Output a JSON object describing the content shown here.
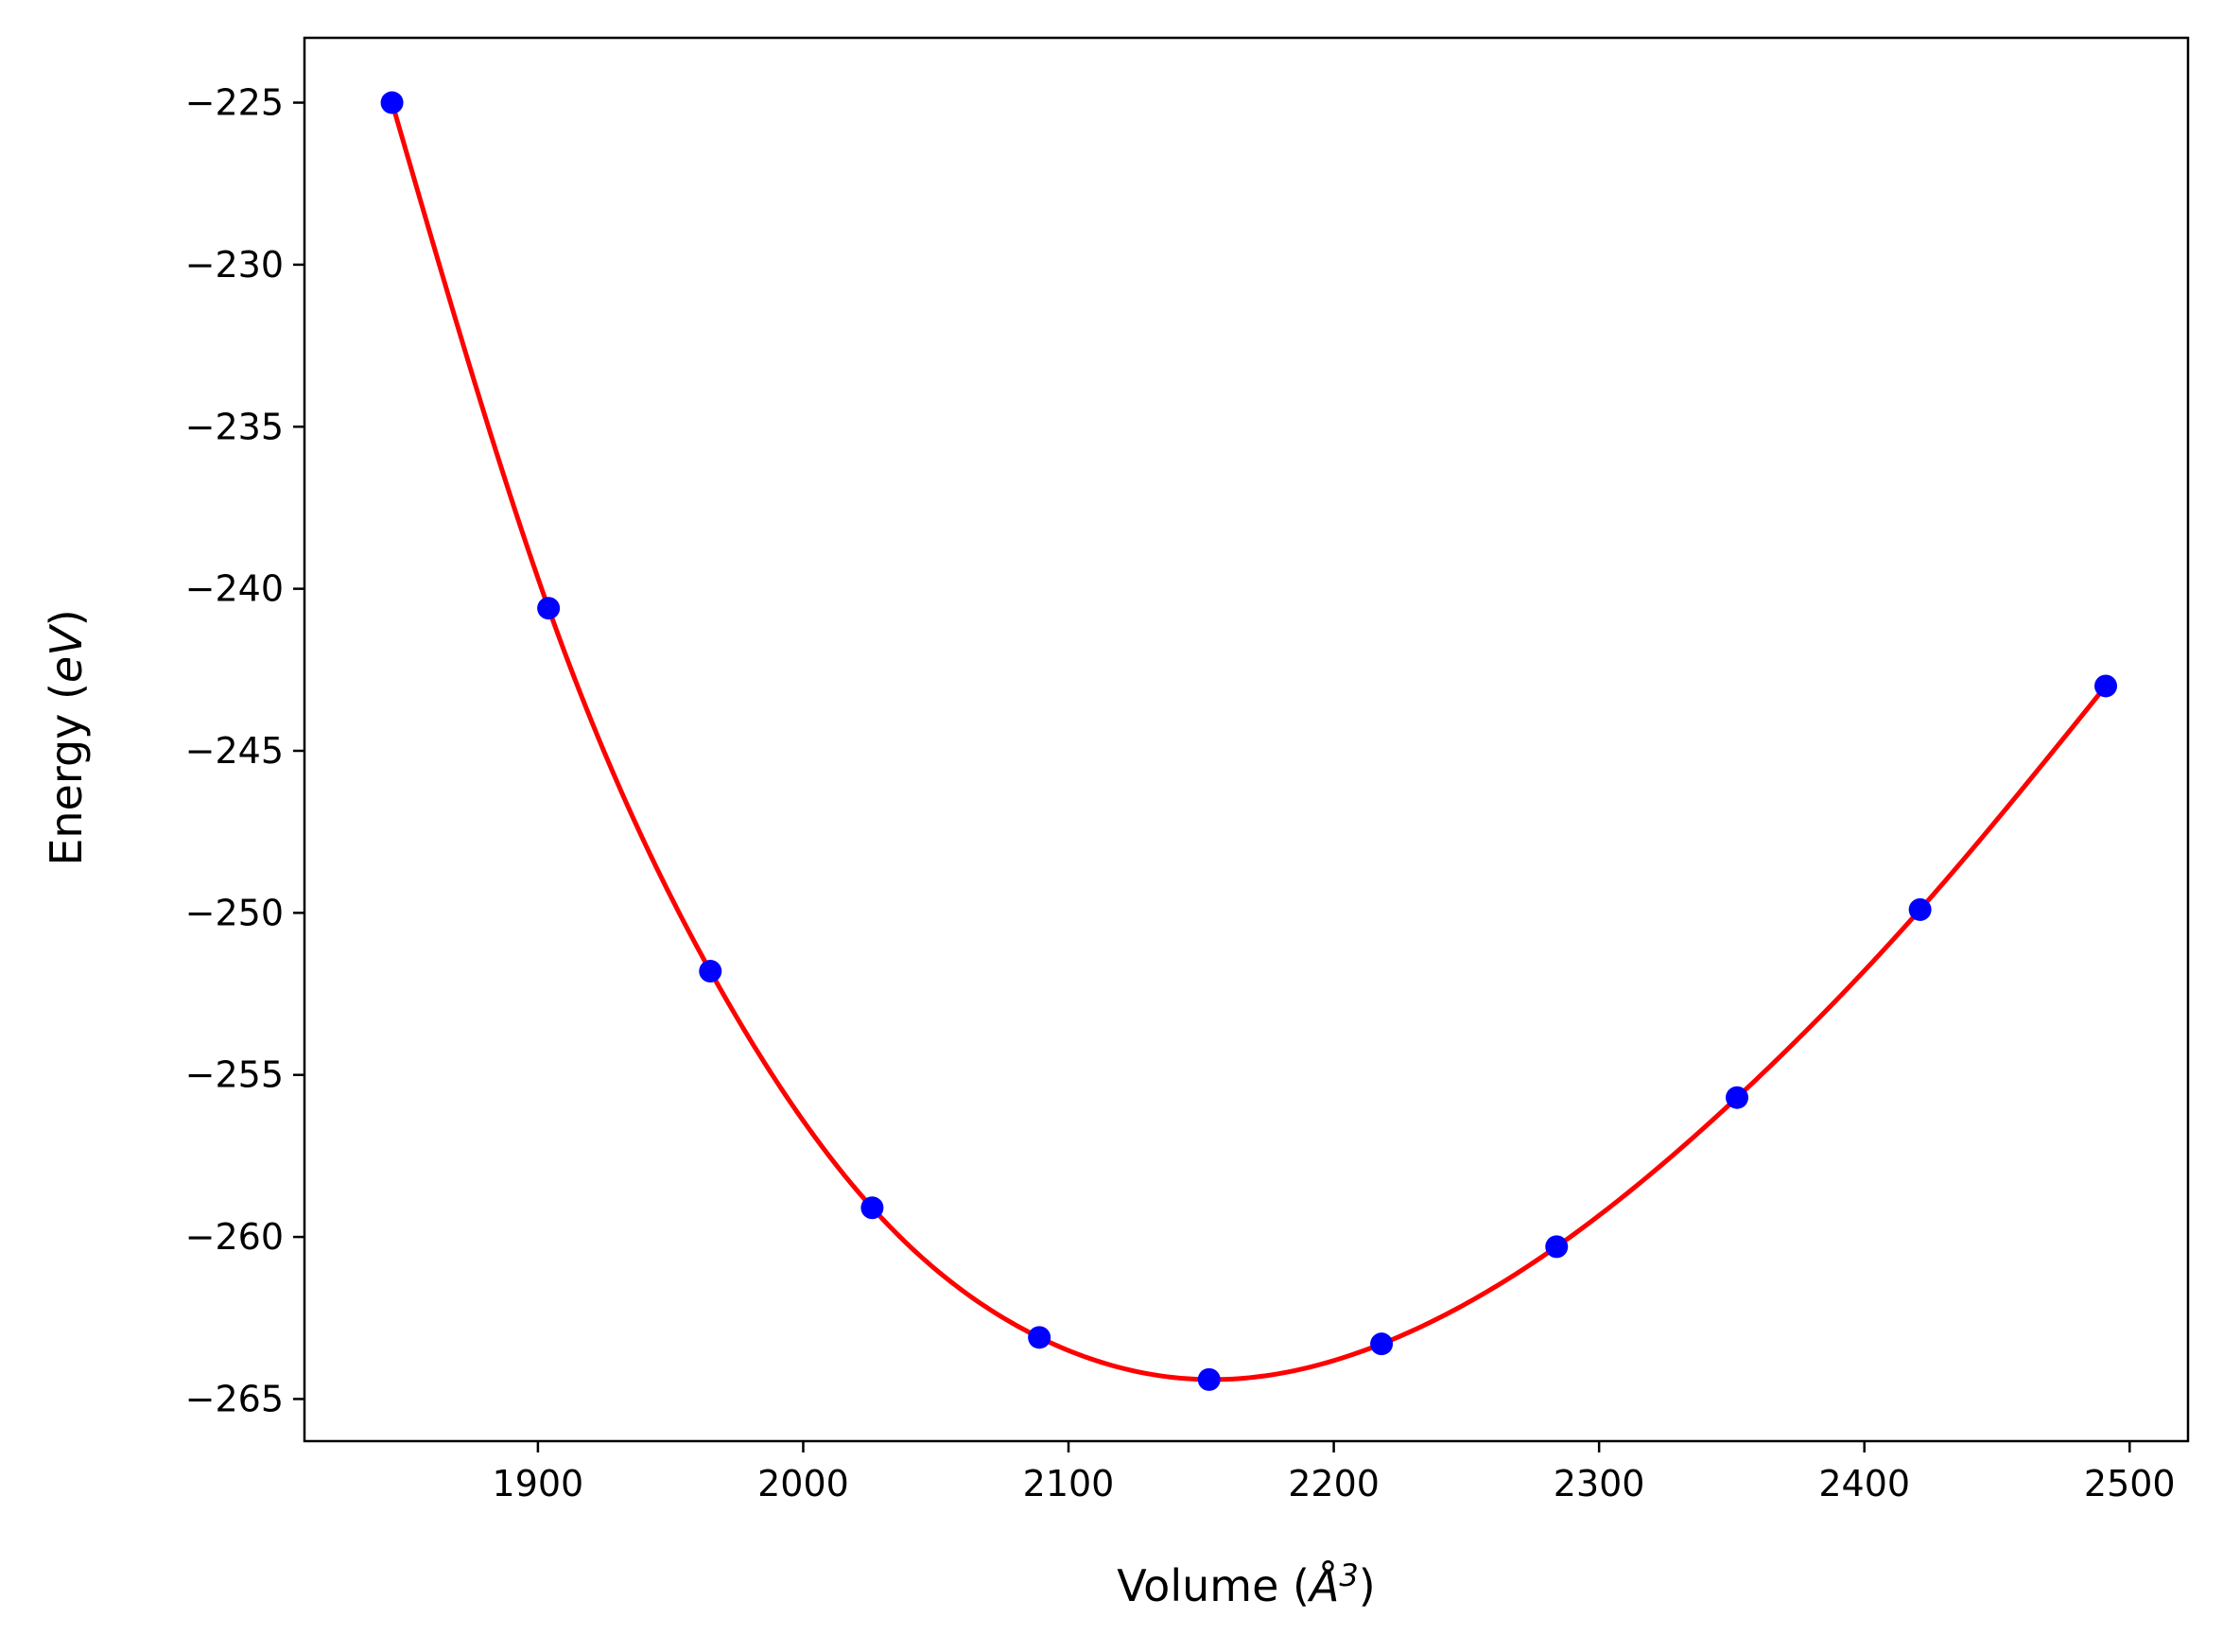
{
  "chart_data": {
    "type": "scatter",
    "xlabel": {
      "prefix": "Volume (",
      "symbol": "Å",
      "sup": "3",
      "suffix": ")"
    },
    "ylabel": {
      "prefix": "Energy (",
      "symbol": "eV",
      "suffix": ")"
    },
    "xlim": [
      1812,
      2522
    ],
    "ylim": [
      -266.3,
      -223.0
    ],
    "xticks": [
      1900,
      2000,
      2100,
      2200,
      2300,
      2400,
      2500
    ],
    "xtick_labels": [
      "1900",
      "2000",
      "2100",
      "2200",
      "2300",
      "2400",
      "2500"
    ],
    "yticks": [
      -225,
      -230,
      -235,
      -240,
      -245,
      -250,
      -255,
      -260,
      -265
    ],
    "ytick_labels": [
      "−225",
      "−230",
      "−235",
      "−240",
      "−245",
      "−250",
      "−255",
      "−260",
      "−265"
    ],
    "grid": false,
    "points": {
      "color": "#0000ff",
      "x": [
        1845,
        1904,
        1965,
        2026,
        2089,
        2153,
        2218,
        2284,
        2352,
        2421,
        2491
      ],
      "y": [
        -225.0,
        -240.6,
        -251.8,
        -259.1,
        -263.1,
        -264.4,
        -263.3,
        -260.3,
        -255.7,
        -249.9,
        -243.0
      ]
    },
    "fit_curve": {
      "color": "#ff0000",
      "x": [
        1845,
        1904,
        1965,
        2026,
        2089,
        2153,
        2218,
        2284,
        2352,
        2421,
        2491
      ],
      "y": [
        -225.0,
        -240.6,
        -251.8,
        -259.1,
        -263.1,
        -264.4,
        -263.3,
        -260.3,
        -255.7,
        -249.9,
        -243.0
      ]
    }
  }
}
